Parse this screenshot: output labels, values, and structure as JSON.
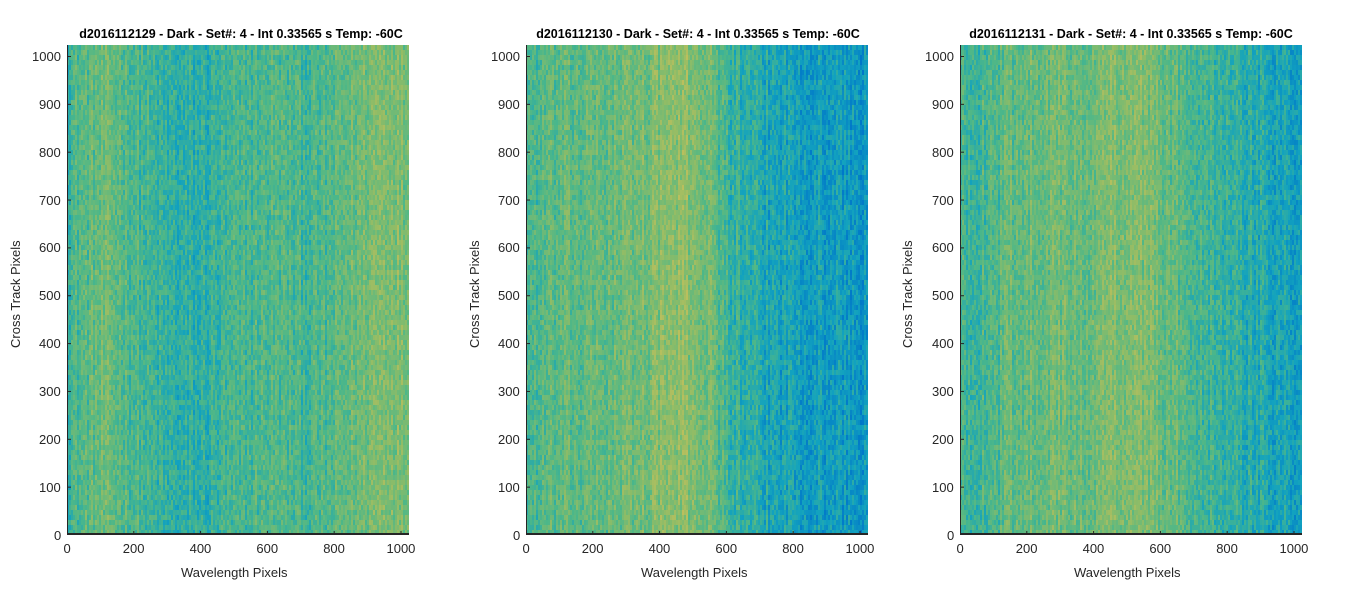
{
  "chart_data": [
    {
      "type": "heatmap",
      "title": "d2016112129 - Dark - Set#: 4 - Int 0.33565 s Temp: -60C",
      "xlabel": "Wavelength Pixels",
      "ylabel": "Cross Track Pixels",
      "xlim": [
        0,
        1024
      ],
      "ylim": [
        0,
        1024
      ],
      "xticks": [
        0,
        200,
        400,
        600,
        800,
        1000
      ],
      "yticks": [
        0,
        100,
        200,
        300,
        400,
        500,
        600,
        700,
        800,
        900,
        1000
      ],
      "colormap": [
        "#0077c9",
        "#12a2bf",
        "#4cb789",
        "#8ebc67",
        "#c8c05a"
      ],
      "column_profile": [
        0.45,
        0.55,
        0.6,
        0.58,
        0.5,
        0.42,
        0.38,
        0.36,
        0.38,
        0.42,
        0.46,
        0.5,
        0.52,
        0.5,
        0.48,
        0.5,
        0.55,
        0.62,
        0.7,
        0.72,
        0.65
      ]
    },
    {
      "type": "heatmap",
      "title": "d2016112130 - Dark - Set#: 4 - Int 0.33565 s Temp: -60C",
      "xlabel": "Wavelength Pixels",
      "ylabel": "Cross Track Pixels",
      "xlim": [
        0,
        1024
      ],
      "ylim": [
        0,
        1024
      ],
      "xticks": [
        0,
        200,
        400,
        600,
        800,
        1000
      ],
      "yticks": [
        0,
        100,
        200,
        300,
        400,
        500,
        600,
        700,
        800,
        900,
        1000
      ],
      "colormap": [
        "#0077c9",
        "#12a2bf",
        "#4cb789",
        "#8ebc67",
        "#c8c05a"
      ],
      "column_profile": [
        0.5,
        0.52,
        0.55,
        0.56,
        0.58,
        0.6,
        0.62,
        0.66,
        0.72,
        0.74,
        0.7,
        0.6,
        0.42,
        0.34,
        0.3,
        0.28,
        0.26,
        0.24,
        0.22,
        0.2,
        0.18
      ]
    },
    {
      "type": "heatmap",
      "title": "d2016112131 - Dark - Set#: 4 - Int 0.33565 s Temp: -60C",
      "xlabel": "Wavelength Pixels",
      "ylabel": "Cross Track Pixels",
      "xlim": [
        0,
        1024
      ],
      "ylim": [
        0,
        1024
      ],
      "xticks": [
        0,
        200,
        400,
        600,
        800,
        1000
      ],
      "yticks": [
        0,
        100,
        200,
        300,
        400,
        500,
        600,
        700,
        800,
        900,
        1000
      ],
      "colormap": [
        "#0077c9",
        "#12a2bf",
        "#4cb789",
        "#8ebc67",
        "#c8c05a"
      ],
      "column_profile": [
        0.44,
        0.48,
        0.52,
        0.58,
        0.62,
        0.64,
        0.62,
        0.6,
        0.64,
        0.7,
        0.72,
        0.68,
        0.6,
        0.55,
        0.5,
        0.45,
        0.4,
        0.36,
        0.32,
        0.28,
        0.24
      ]
    }
  ]
}
